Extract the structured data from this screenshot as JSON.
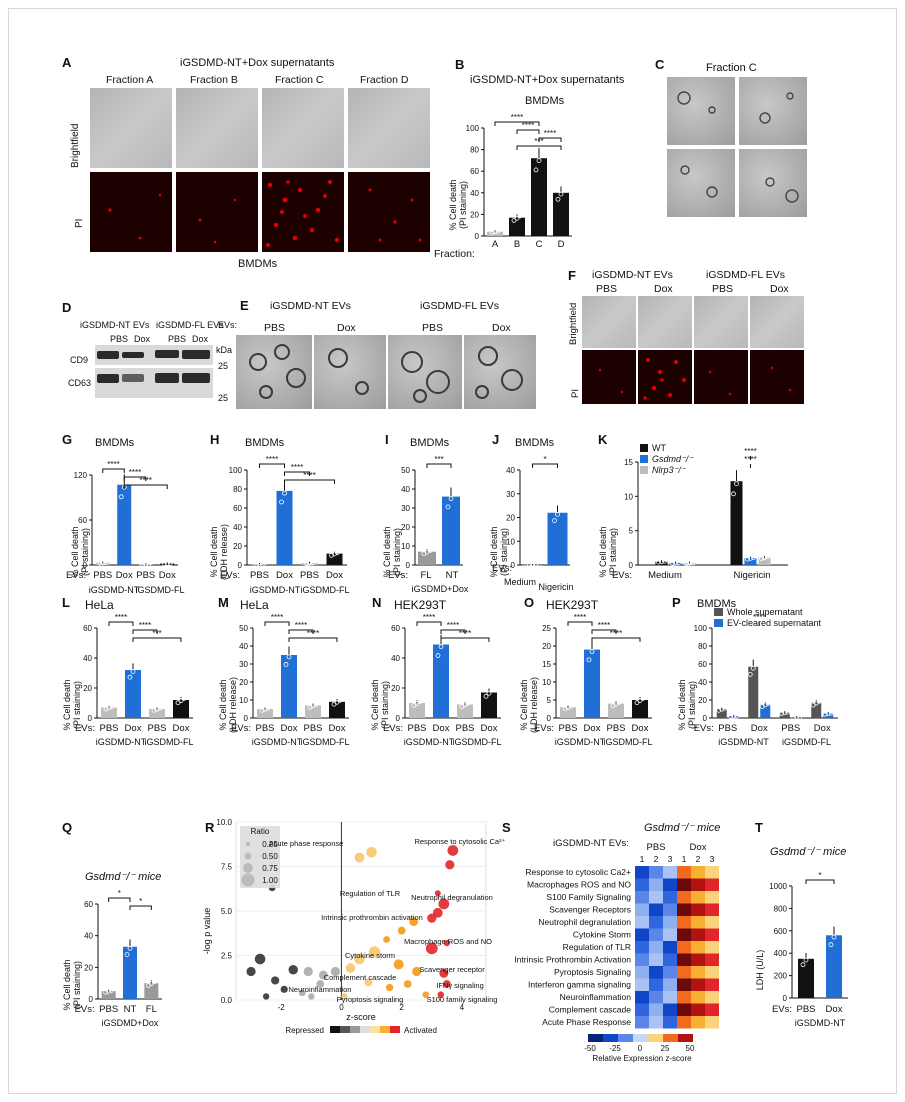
{
  "panels": [
    "A",
    "B",
    "C",
    "D",
    "E",
    "F",
    "G",
    "H",
    "I",
    "J",
    "K",
    "L",
    "M",
    "N",
    "O",
    "P",
    "Q",
    "R",
    "S",
    "T"
  ],
  "A": {
    "title": "iGSDMD-NT+Dox supernatants",
    "fractions": [
      "Fraction A",
      "Fraction B",
      "Fraction C",
      "Fraction D"
    ],
    "rows": [
      "Brightfield",
      "PI"
    ],
    "footer": "BMDMs"
  },
  "B": {
    "title": "iGSDMD-NT+Dox supernatants",
    "subtitle": "BMDMs",
    "ylabel": "% Cell death\n(PI staining)",
    "xprefix": "Fraction:"
  },
  "C": {
    "title": "Fraction C"
  },
  "D": {
    "groups": [
      "iGSDMD-NT EVs",
      "iGSDMD-FL EVs"
    ],
    "lanes": [
      "PBS",
      "Dox",
      "PBS",
      "Dox"
    ],
    "markers": [
      "CD9",
      "CD63"
    ],
    "kda": "kDa",
    "sizes": [
      "25",
      "25"
    ]
  },
  "E": {
    "groups": [
      "iGSDMD-NT EVs",
      "iGSDMD-FL EVs"
    ],
    "lanes": [
      "PBS",
      "Dox",
      "PBS",
      "Dox"
    ]
  },
  "F": {
    "groups": [
      "iGSDMD-NT EVs",
      "iGSDMD-FL EVs"
    ],
    "lanes": [
      "PBS",
      "Dox",
      "PBS",
      "Dox"
    ],
    "rows": [
      "Brightfield",
      "PI"
    ]
  },
  "evs": "EVs:",
  "nt": "iGSDMD-NT",
  "fl": "iGSDMD-FL",
  "cell_bmdm": "BMDMs",
  "hela": "HeLa",
  "hek": "HEK293T",
  "pi_y": "% Cell death\n(PI staining)",
  "ldh_y": "% Cell death\n(LDH release)",
  "I": {
    "group": "iGSDMD+Dox"
  },
  "K": {
    "legend": [
      "WT",
      "Gsdmd⁻/⁻",
      "Nlrp3⁻/⁻"
    ],
    "cats": [
      "Medium",
      "Nigericin"
    ]
  },
  "J": {
    "cats": [
      "Medium",
      "Nigericin"
    ]
  },
  "P": {
    "legend": [
      "Whole supernatant",
      "EV-cleared supernatant"
    ]
  },
  "Q": {
    "title": "Gsdmd⁻/⁻ mice",
    "cats": [
      "PBS",
      "NT",
      "FL"
    ],
    "group": "iGSDMD+Dox"
  },
  "R": {
    "xlabel": "z-score",
    "ylabel": "-log p value",
    "ratio_title": "Ratio",
    "ratios": [
      "0.25",
      "0.50",
      "0.75",
      "1.00"
    ],
    "scale": [
      "Repressed",
      "Activated"
    ],
    "labels": [
      "Acute phase response",
      "Response to cytosolic Ca²⁺",
      "Regulation of TLR",
      "Intrinsic prothrombin activation",
      "Neutrophil degranulation",
      "Macrophage ROS and NO",
      "Cytokine storm",
      "Scavenger receptor",
      "Complement cascade",
      "IFNγ signaling",
      "Neuroinflammation",
      "Pyroptosis signaling",
      "S100 family signaling"
    ]
  },
  "S": {
    "title": "Gsdmd⁻/⁻ mice",
    "evlabel": "iGSDMD-NT EVs:",
    "cols": [
      "PBS",
      "Dox"
    ],
    "reps": [
      "1",
      "2",
      "3",
      "1",
      "2",
      "3"
    ],
    "rows": [
      "Response to cytosolic Ca2+",
      "Macrophages ROS and NO",
      "S100 Family Signaling",
      "Scavenger Receptors",
      "Neutrophil degranulation",
      "Cytokine Storm",
      "Regulation of TLR",
      "Intrinsic Prothrombin Activation",
      "Pyroptosis Signaling",
      "Interferon gamma signaling",
      "Neuroinflammation",
      "Complement cascade",
      "Acute Phase Response"
    ],
    "scale_ticks": [
      "-50",
      "-25",
      "0",
      "25",
      "50"
    ],
    "scale_label": "Relative Expression z-score"
  },
  "T": {
    "title": "Gsdmd⁻/⁻ mice",
    "ylabel": "LDH (U/L)",
    "cats": [
      "PBS",
      "Dox"
    ]
  },
  "colors": {
    "blue": "#1f6fd6",
    "black": "#111111",
    "grey": "#9a9a9a",
    "lightgrey": "#bdbdbd"
  },
  "chart_data": [
    {
      "panel": "B",
      "type": "bar",
      "categories": [
        "A",
        "B",
        "C",
        "D"
      ],
      "values": [
        4,
        17,
        72,
        40
      ],
      "ylim": [
        0,
        100
      ],
      "yticks": [
        0,
        20,
        40,
        60,
        80,
        100
      ],
      "sig": [
        "****",
        "****",
        "****",
        "***"
      ]
    },
    {
      "panel": "G",
      "type": "bar",
      "categories": [
        "PBS",
        "Dox",
        "PBS",
        "Dox"
      ],
      "values": [
        3,
        107,
        1,
        2
      ],
      "ylim": [
        0,
        120
      ],
      "sig": [
        "****",
        "****",
        "****"
      ]
    },
    {
      "panel": "H",
      "type": "bar",
      "categories": [
        "PBS",
        "Dox",
        "PBS",
        "Dox"
      ],
      "values": [
        1,
        78,
        2,
        12
      ],
      "ylim": [
        0,
        100
      ],
      "yticks": [
        0,
        20,
        40,
        60,
        80,
        100
      ],
      "sig": [
        "****",
        "****",
        "****"
      ]
    },
    {
      "panel": "I",
      "type": "bar",
      "categories": [
        "FL",
        "NT"
      ],
      "values": [
        7,
        36
      ],
      "ylim": [
        0,
        50
      ],
      "yticks": [
        0,
        10,
        20,
        30,
        40,
        50
      ],
      "sig": [
        "***"
      ]
    },
    {
      "panel": "J",
      "type": "bar",
      "categories": [
        "Medium",
        "Nigericin"
      ],
      "values": [
        0,
        22
      ],
      "ylim": [
        0,
        40
      ],
      "yticks": [
        0,
        10,
        20,
        30,
        40
      ],
      "sig": [
        "*"
      ]
    },
    {
      "panel": "K",
      "type": "bar",
      "categories": [
        "Medium",
        "Nigericin"
      ],
      "series": [
        {
          "name": "WT",
          "values": [
            0.5,
            12.2
          ]
        },
        {
          "name": "Gsdmd-/-",
          "values": [
            0.3,
            1.0
          ]
        },
        {
          "name": "Nlrp3-/-",
          "values": [
            0.3,
            1.1
          ]
        }
      ],
      "ylim": [
        0,
        15
      ],
      "yticks": [
        0,
        5,
        10,
        15
      ],
      "sig": [
        "****",
        "****"
      ]
    },
    {
      "panel": "L",
      "type": "bar",
      "categories": [
        "PBS",
        "Dox",
        "PBS",
        "Dox"
      ],
      "values": [
        7,
        32,
        6,
        12
      ],
      "ylim": [
        0,
        60
      ],
      "yticks": [
        0,
        20,
        40,
        60
      ],
      "sig": [
        "****",
        "****",
        "***"
      ]
    },
    {
      "panel": "M",
      "type": "bar",
      "categories": [
        "PBS",
        "Dox",
        "PBS",
        "Dox"
      ],
      "values": [
        5,
        35,
        7,
        9
      ],
      "ylim": [
        0,
        50
      ],
      "yticks": [
        0,
        10,
        20,
        30,
        40,
        50
      ],
      "sig": [
        "****",
        "****",
        "****"
      ]
    },
    {
      "panel": "N",
      "type": "bar",
      "categories": [
        "PBS",
        "Dox",
        "PBS",
        "Dox"
      ],
      "values": [
        10,
        49,
        9,
        17
      ],
      "ylim": [
        0,
        60
      ],
      "yticks": [
        0,
        20,
        40,
        60
      ],
      "sig": [
        "****",
        "****",
        "****"
      ]
    },
    {
      "panel": "O",
      "type": "bar",
      "categories": [
        "PBS",
        "Dox",
        "PBS",
        "Dox"
      ],
      "values": [
        3,
        19,
        4,
        5
      ],
      "ylim": [
        0,
        25
      ],
      "yticks": [
        0,
        5,
        10,
        15,
        20,
        25
      ],
      "sig": [
        "****",
        "****",
        "****"
      ]
    },
    {
      "panel": "P",
      "type": "bar",
      "categories": [
        "PBS",
        "Dox",
        "PBS",
        "Dox"
      ],
      "series": [
        {
          "name": "Whole supernatant",
          "values": [
            10,
            57,
            6,
            17
          ]
        },
        {
          "name": "EV-cleared supernatant",
          "values": [
            2,
            15,
            1,
            5
          ]
        }
      ],
      "ylim": [
        0,
        100
      ],
      "yticks": [
        0,
        20,
        40,
        60,
        80,
        100
      ],
      "sig": [
        "****"
      ]
    },
    {
      "panel": "Q",
      "type": "bar",
      "categories": [
        "PBS",
        "NT",
        "FL"
      ],
      "values": [
        5,
        33,
        10
      ],
      "ylim": [
        0,
        60
      ],
      "yticks": [
        0,
        20,
        40,
        60
      ],
      "sig": [
        "*",
        "*"
      ]
    },
    {
      "panel": "T",
      "type": "bar",
      "categories": [
        "PBS",
        "Dox"
      ],
      "values": [
        350,
        560
      ],
      "ylim": [
        0,
        1000
      ],
      "yticks": [
        0,
        200,
        400,
        600,
        800,
        1000
      ],
      "sig": [
        "*"
      ]
    },
    {
      "panel": "R",
      "type": "scatter",
      "xlabel": "z-score",
      "ylabel": "-log p value",
      "xlim": [
        -3.5,
        4.8
      ],
      "ylim": [
        0,
        10
      ],
      "xticks": [
        -2,
        0,
        2,
        4
      ],
      "yticks": [
        0.0,
        2.5,
        5.0,
        7.5,
        10.0
      ],
      "points": [
        [
          -2.3,
          6.3
        ],
        [
          0.6,
          8.0
        ],
        [
          1.0,
          8.3
        ],
        [
          3.7,
          8.4
        ],
        [
          3.6,
          7.6
        ],
        [
          3.2,
          6.0
        ],
        [
          3.4,
          5.4
        ],
        [
          3.2,
          4.9
        ],
        [
          3.0,
          4.6
        ],
        [
          3.5,
          3.2
        ],
        [
          3.0,
          2.9
        ],
        [
          3.4,
          1.5
        ],
        [
          3.5,
          0.9
        ],
        [
          3.3,
          0.3
        ],
        [
          2.4,
          4.4
        ],
        [
          2.0,
          3.9
        ],
        [
          1.5,
          3.4
        ],
        [
          1.1,
          2.7
        ],
        [
          0.6,
          2.3
        ],
        [
          0.3,
          1.8
        ],
        [
          -0.2,
          1.6
        ],
        [
          -0.6,
          1.4
        ],
        [
          -1.1,
          1.6
        ],
        [
          -1.6,
          1.7
        ],
        [
          -2.2,
          1.1
        ],
        [
          -2.7,
          2.3
        ],
        [
          -3.0,
          1.6
        ],
        [
          -1.9,
          0.6
        ],
        [
          -1.3,
          0.4
        ],
        [
          -0.7,
          0.9
        ],
        [
          0.9,
          1.0
        ],
        [
          1.6,
          0.7
        ],
        [
          2.2,
          0.9
        ],
        [
          2.8,
          0.3
        ],
        [
          1.9,
          2.0
        ],
        [
          2.5,
          1.6
        ],
        [
          0.1,
          0.2
        ],
        [
          -2.5,
          0.2
        ],
        [
          -1.0,
          0.2
        ]
      ]
    }
  ]
}
